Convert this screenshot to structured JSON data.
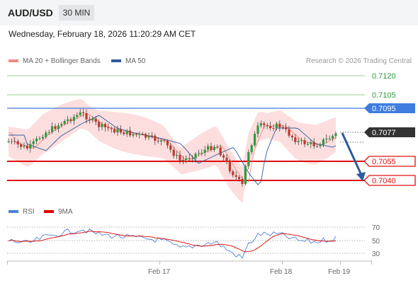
{
  "header": {
    "symbol": "AUD/USD",
    "timeframe": "30 MIN"
  },
  "datetime": "Wednesday, February 18, 2026 11:20:29 AM CET",
  "legend": {
    "ma20": "MA 20 + Bollinger Bands",
    "ma50": "MA 50",
    "ma20_color": "#f28b82",
    "ma50_color": "#2f5aa0"
  },
  "copyright": "Research © 2026 Trading Central",
  "levels": [
    {
      "value": "0.7120",
      "kind": "resistance-thin"
    },
    {
      "value": "0.7105",
      "kind": "resistance-thin"
    },
    {
      "value": "0.7095",
      "kind": "pivot"
    },
    {
      "value": "0.7077",
      "kind": "last"
    },
    {
      "value": "0.7055",
      "kind": "support"
    },
    {
      "value": "0.7040",
      "kind": "support"
    }
  ],
  "rsi_legend": {
    "rsi": "RSI",
    "ma9": "9MA",
    "rsi_color": "#4f7fd8",
    "ma9_color": "#e00000"
  },
  "rsi_axis": [
    "70",
    "50",
    "30"
  ],
  "x_axis": [
    "Feb 17",
    "Feb 18",
    "Feb 19"
  ],
  "colors": {
    "thin_line": "#7ac36a",
    "pivot": "#3f7de0",
    "support": "#e01010",
    "last": "#333333",
    "bull": "#2e9b3e",
    "bear": "#c0392b",
    "band_fill": "#fbd3d3",
    "arrow": "#2f5aa0"
  }
}
